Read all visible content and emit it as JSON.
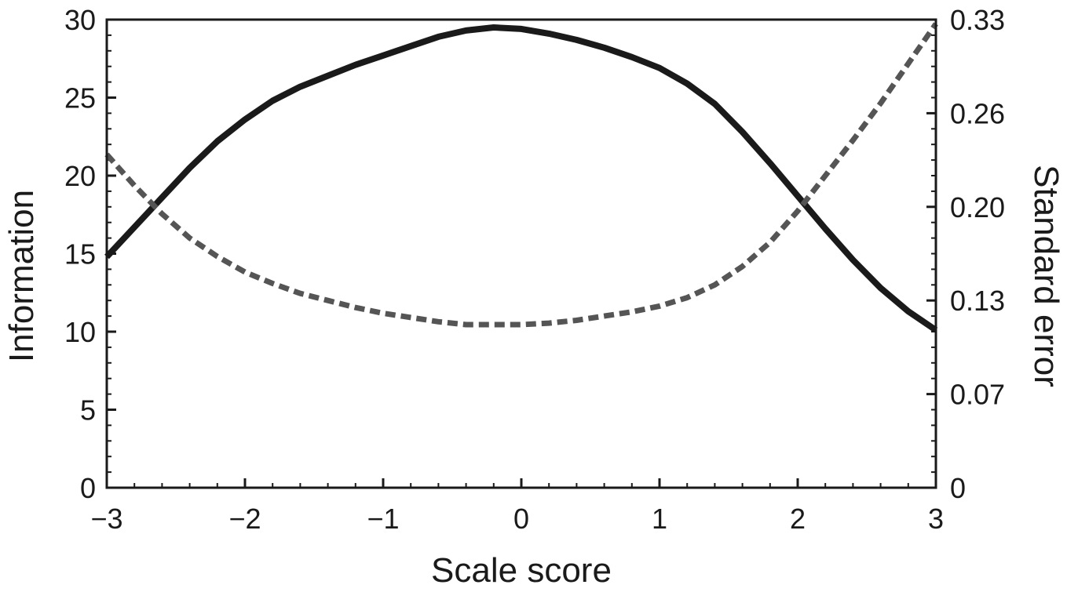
{
  "chart_data": {
    "type": "line",
    "title": "",
    "xlabel": "Scale score",
    "ylabel": "Information",
    "y2label": "Standard error",
    "xlim": [
      -3,
      3
    ],
    "ylim": [
      0,
      30
    ],
    "y2lim": [
      0,
      0.33
    ],
    "x_ticks": [
      {
        "value": -3,
        "label": "−3"
      },
      {
        "value": -2,
        "label": "−2"
      },
      {
        "value": -1,
        "label": "−1"
      },
      {
        "value": 0,
        "label": "0"
      },
      {
        "value": 1,
        "label": "1"
      },
      {
        "value": 2,
        "label": "2"
      },
      {
        "value": 3,
        "label": "3"
      }
    ],
    "y_ticks": [
      {
        "value": 0,
        "label": "0"
      },
      {
        "value": 5,
        "label": "5"
      },
      {
        "value": 10,
        "label": "10"
      },
      {
        "value": 15,
        "label": "15"
      },
      {
        "value": 20,
        "label": "20"
      },
      {
        "value": 25,
        "label": "25"
      },
      {
        "value": 30,
        "label": "30"
      }
    ],
    "y2_ticks": [
      {
        "value": 0,
        "label": "0"
      },
      {
        "value": 0.066,
        "label": "0.07"
      },
      {
        "value": 0.132,
        "label": "0.13"
      },
      {
        "value": 0.198,
        "label": "0.20"
      },
      {
        "value": 0.264,
        "label": "0.26"
      },
      {
        "value": 0.33,
        "label": "0.33"
      }
    ],
    "grid": false,
    "legend": "none",
    "series": [
      {
        "axis": "left",
        "style": "solid",
        "color": "#1a1a1a",
        "x": [
          -3.0,
          -2.8,
          -2.6,
          -2.4,
          -2.2,
          -2.0,
          -1.8,
          -1.6,
          -1.4,
          -1.2,
          -1.0,
          -0.8,
          -0.6,
          -0.4,
          -0.2,
          0.0,
          0.2,
          0.4,
          0.6,
          0.8,
          1.0,
          1.2,
          1.4,
          1.6,
          1.8,
          2.0,
          2.2,
          2.4,
          2.6,
          2.8,
          3.0
        ],
        "y": [
          14.8,
          16.7,
          18.6,
          20.5,
          22.2,
          23.6,
          24.8,
          25.7,
          26.4,
          27.1,
          27.7,
          28.3,
          28.9,
          29.3,
          29.5,
          29.4,
          29.1,
          28.7,
          28.2,
          27.6,
          26.9,
          25.9,
          24.6,
          22.8,
          20.8,
          18.7,
          16.6,
          14.6,
          12.8,
          11.3,
          10.1
        ]
      },
      {
        "axis": "right",
        "style": "dashed",
        "color": "#555555",
        "x": [
          -3.0,
          -2.8,
          -2.6,
          -2.4,
          -2.2,
          -2.0,
          -1.8,
          -1.6,
          -1.4,
          -1.2,
          -1.0,
          -0.8,
          -0.6,
          -0.4,
          -0.2,
          0.0,
          0.2,
          0.4,
          0.6,
          0.8,
          1.0,
          1.2,
          1.4,
          1.6,
          1.8,
          2.0,
          2.2,
          2.4,
          2.6,
          2.8,
          3.0
        ],
        "y": [
          0.235,
          0.213,
          0.193,
          0.176,
          0.163,
          0.152,
          0.144,
          0.137,
          0.132,
          0.127,
          0.123,
          0.12,
          0.117,
          0.115,
          0.115,
          0.115,
          0.116,
          0.118,
          0.121,
          0.124,
          0.128,
          0.134,
          0.143,
          0.156,
          0.173,
          0.195,
          0.22,
          0.245,
          0.271,
          0.299,
          0.327
        ]
      }
    ]
  }
}
